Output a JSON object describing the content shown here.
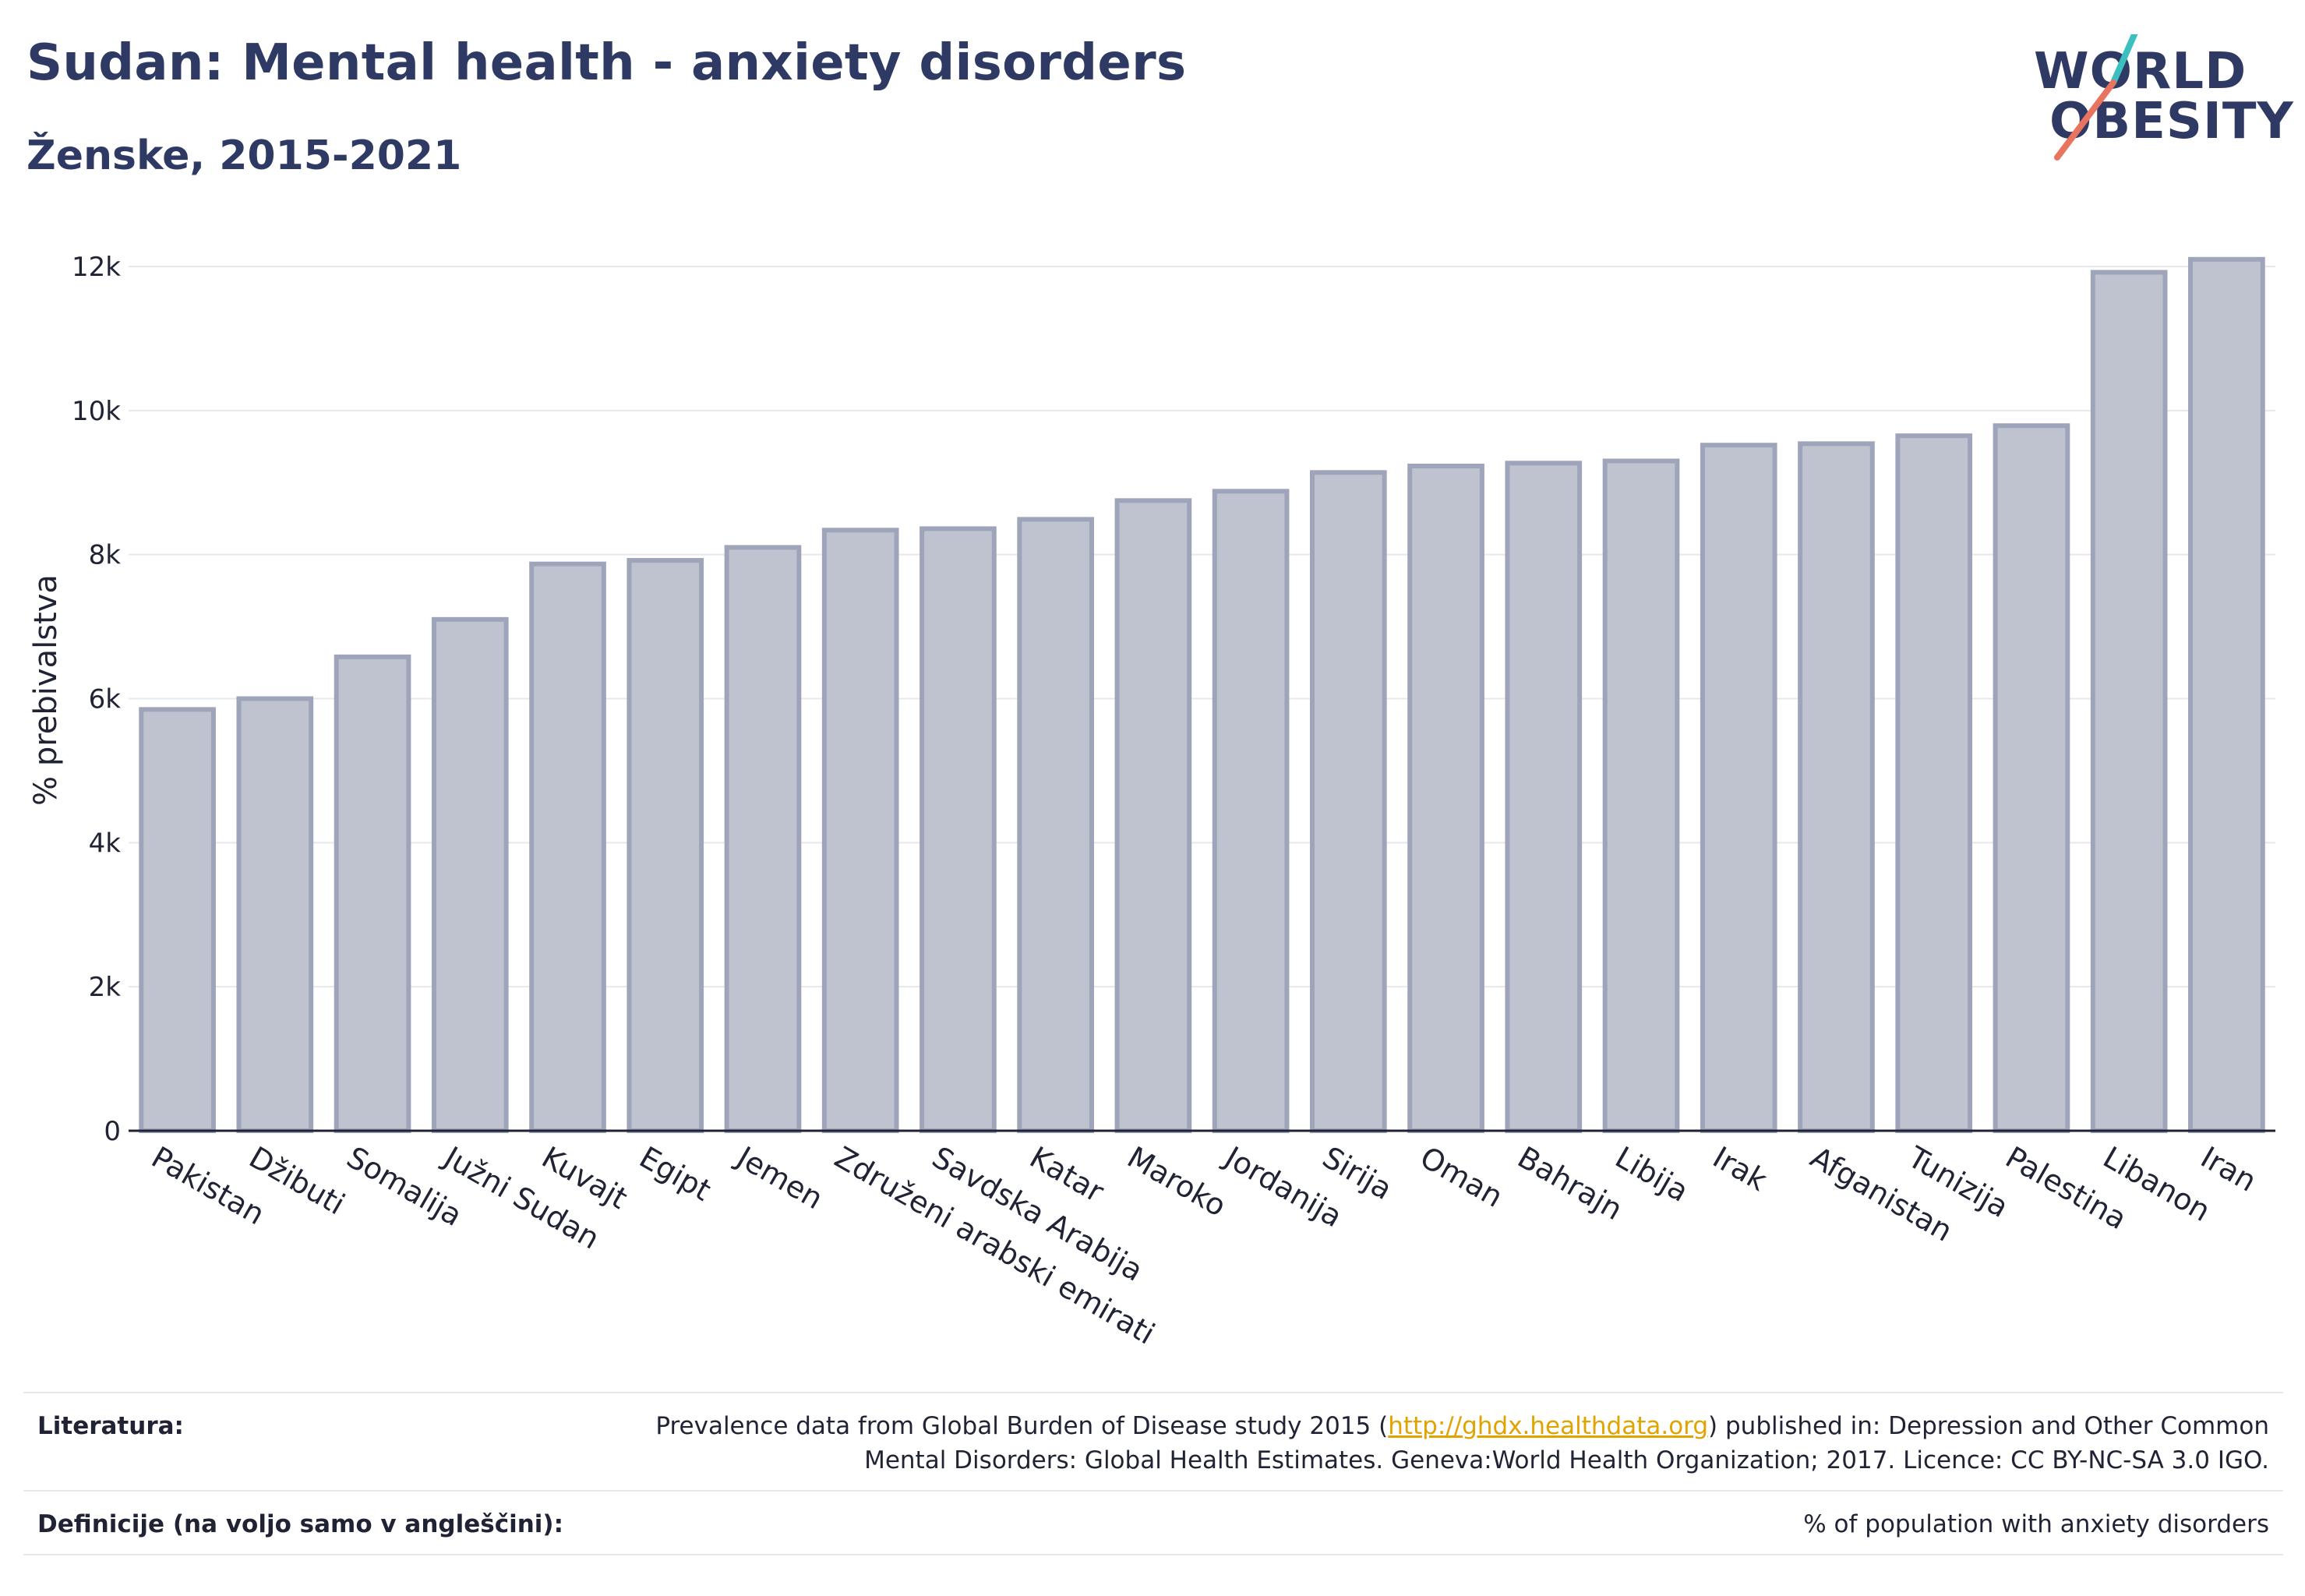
{
  "header": {
    "title": "Sudan: Mental health - anxiety disorders",
    "subtitle": "Ženske, 2015-2021"
  },
  "logo": {
    "line1": "WORLD",
    "line2": "OBESITY"
  },
  "colors": {
    "title": "#2e3a63",
    "bar_fill": "#bfc3d0",
    "bar_stroke": "#9ea4ba",
    "grid": "#e6e8ee",
    "axis": "#1f2333",
    "logo_teal": "#3bbfbf",
    "logo_coral": "#e8735f",
    "link": "#e0a400"
  },
  "chart_data": {
    "type": "bar",
    "ylabel": "% prebivalstva",
    "ylim": [
      0,
      12000
    ],
    "yticks": [
      0,
      2000,
      4000,
      6000,
      8000,
      10000,
      12000
    ],
    "ytick_labels": [
      "0",
      "2k",
      "4k",
      "6k",
      "8k",
      "10k",
      "12k"
    ],
    "grid": true,
    "categories": [
      "Pakistan",
      "Džibuti",
      "Somalija",
      "Južni Sudan",
      "Kuvajt",
      "Egipt",
      "Jemen",
      "Združeni arabski emirati",
      "Savdska Arabija",
      "Katar",
      "Maroko",
      "Jordanija",
      "Sirija",
      "Oman",
      "Bahrajn",
      "Libija",
      "Irak",
      "Afganistan",
      "Tunizija",
      "Palestina",
      "Libanon",
      "Iran"
    ],
    "values": [
      5850,
      6000,
      6580,
      7100,
      7870,
      7920,
      8100,
      8340,
      8360,
      8490,
      8750,
      8880,
      9140,
      9230,
      9270,
      9300,
      9520,
      9540,
      9650,
      9790,
      11920,
      12100
    ]
  },
  "footer": {
    "references_label": "Literatura:",
    "references_pre": "Prevalence data from Global Burden of Disease study 2015 (",
    "references_link": "http://ghdx.healthdata.org",
    "references_post": ") published in: Depression and Other Common",
    "references_line2": "Mental Disorders: Global Health Estimates. Geneva:World Health Organization; 2017. Licence: CC BY-NC-SA 3.0 IGO.",
    "definitions_label": "Definicije (na voljo samo v angleščini):",
    "definitions_text": "% of population with anxiety disorders"
  }
}
